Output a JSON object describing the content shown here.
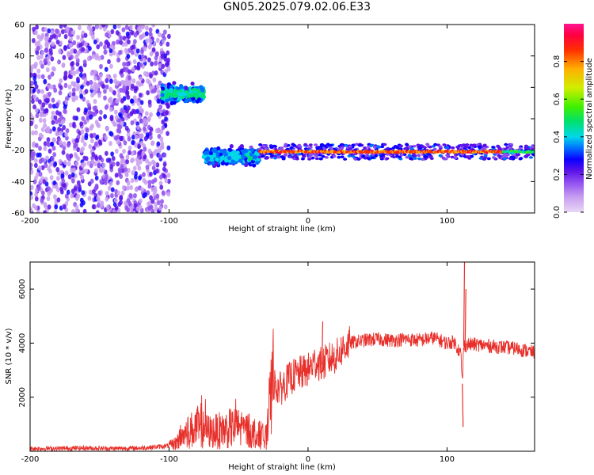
{
  "title": "GN05.2025.079.02.06.E33",
  "colors": {
    "line": "#e8302b",
    "frame": "#000000",
    "colormap": [
      "#e8d8f6",
      "#c89ef0",
      "#8e4df0",
      "#5a12e8",
      "#0b00ff",
      "#0070ff",
      "#00d8e8",
      "#00e070",
      "#40f000",
      "#d0ee00",
      "#ffb000",
      "#ff3000",
      "#ff0040",
      "#ff1493"
    ]
  },
  "chart_data": [
    {
      "type": "heatmap",
      "xlabel": "Height of straight line (km)",
      "ylabel": "Frequency (Hz)",
      "xlim": [
        -200,
        163
      ],
      "ylim": [
        -60,
        60
      ],
      "xticks": [
        -200,
        -100,
        0,
        100
      ],
      "yticks": [
        60,
        40,
        20,
        0,
        -20,
        -40,
        -60
      ],
      "grid": false,
      "colorbar": {
        "label": "Normalized spectral amplitude",
        "range": [
          0,
          1
        ],
        "ticks": [
          "0.0",
          "0.2",
          "0.4",
          "0.6",
          "0.8"
        ]
      },
      "features": [
        {
          "kind": "noise",
          "x_range": [
            -200,
            -100
          ],
          "y_range": [
            -60,
            60
          ],
          "amplitude": [
            0.05,
            0.3
          ]
        },
        {
          "kind": "blob",
          "x_range": [
            -105,
            -75
          ],
          "y_center": 16,
          "y_spread": 6,
          "amplitude": 0.45
        },
        {
          "kind": "blob",
          "x_range": [
            -75,
            -35
          ],
          "y_center": -24,
          "y_spread": 6,
          "amplitude": 0.4
        },
        {
          "kind": "band",
          "x_range": [
            -35,
            163
          ],
          "y_center": -21,
          "y_spread": 3,
          "amplitude": 0.9
        }
      ]
    },
    {
      "type": "line",
      "xlabel": "Height of straight line (km)",
      "ylabel": "SNR (10 * v/v)",
      "xlim": [
        -200,
        163
      ],
      "ylim": [
        0,
        7000
      ],
      "xticks": [
        -200,
        -100,
        0,
        100
      ],
      "yticks": [
        2000,
        4000,
        6000
      ],
      "grid": false,
      "series": [
        {
          "x": [
            -200,
            -180,
            -160,
            -140,
            -120,
            -100,
            -95,
            -90,
            -80,
            -70,
            -60,
            -50,
            -40,
            -35,
            -30,
            -25,
            -20,
            -15,
            -10,
            -5,
            0,
            5,
            10,
            15,
            20,
            25,
            30,
            40,
            50,
            60,
            70,
            80,
            90,
            100,
            105,
            110,
            111,
            112,
            115,
            120,
            130,
            140,
            150,
            163
          ],
          "y": [
            100,
            100,
            120,
            100,
            120,
            200,
            300,
            600,
            900,
            700,
            800,
            900,
            700,
            600,
            500,
            2500,
            2300,
            2600,
            2800,
            2900,
            3000,
            3300,
            3200,
            3400,
            3500,
            3800,
            4000,
            4100,
            4150,
            4100,
            4150,
            4100,
            4200,
            4000,
            4050,
            3600,
            2500,
            3900,
            3950,
            3950,
            3900,
            3850,
            3800,
            3650
          ]
        }
      ],
      "annotations_peaks": [
        {
          "x": 10,
          "y": 4800
        },
        {
          "x": 112,
          "y": 7000
        },
        {
          "x": 111,
          "y": 900
        },
        {
          "x": 113,
          "y": 6000
        }
      ]
    }
  ]
}
